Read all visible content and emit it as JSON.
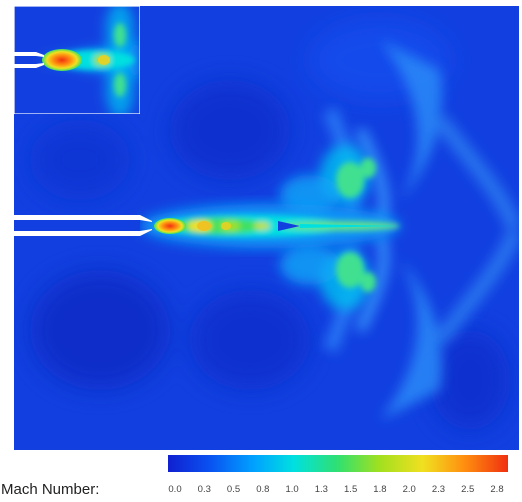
{
  "colorbar": {
    "label": "Mach Number:",
    "ticks": [
      "0.0",
      "0.3",
      "0.5",
      "0.8",
      "1.0",
      "1.3",
      "1.5",
      "1.8",
      "2.0",
      "2.3",
      "2.5",
      "2.8"
    ],
    "colors": [
      "#1020d0",
      "#0a50f0",
      "#00a0ff",
      "#00e0e0",
      "#30e070",
      "#a0e020",
      "#f0e020",
      "#ff9010",
      "#f03010"
    ]
  },
  "field": {
    "background_color": "#1240e0",
    "jet_colors": [
      "#f03010",
      "#ff9010",
      "#f0e020",
      "#40e060",
      "#00d8f0"
    ],
    "nozzle_color": "#ffffff"
  }
}
